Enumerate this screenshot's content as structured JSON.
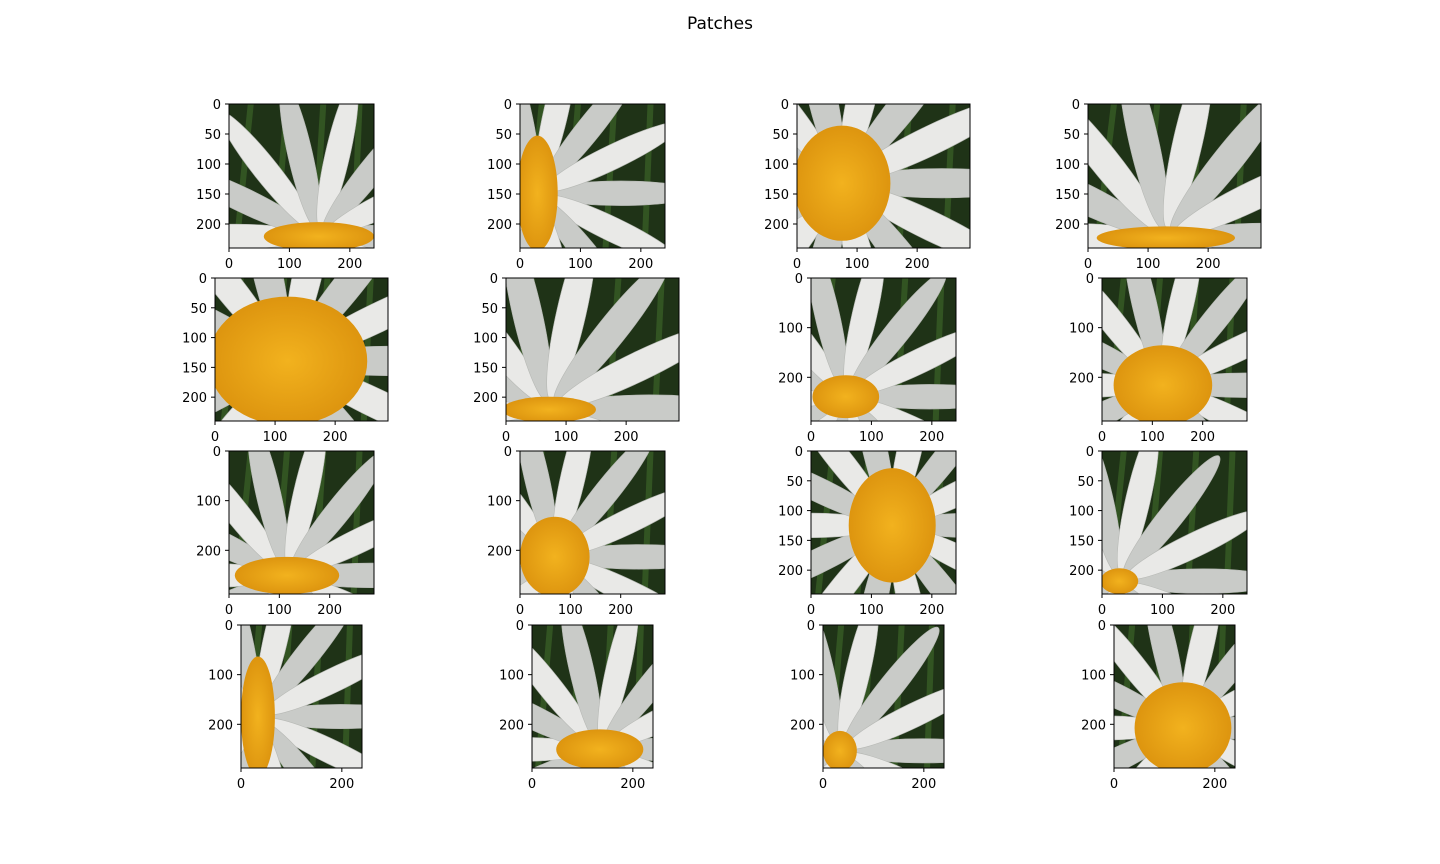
{
  "figure": {
    "title": "Patches"
  },
  "colors": {
    "background": "#1f3317",
    "leaf": "#3f6b2a",
    "petal": "#e9e9e7",
    "petal_shadow": "#c9cbc8",
    "center": "#f2b21e",
    "center_dark": "#d98f0c",
    "outline": "#000000"
  },
  "chart_data": [
    {
      "type": "image",
      "xticks": [
        0,
        100,
        200
      ],
      "yticks": [
        0,
        50,
        100,
        150,
        200
      ],
      "xlim": [
        0,
        240
      ],
      "ylim": [
        240,
        0
      ]
    },
    {
      "type": "image",
      "xticks": [
        0,
        100,
        200
      ],
      "yticks": [
        0,
        50,
        100,
        150,
        200
      ],
      "xlim": [
        0,
        240
      ],
      "ylim": [
        240,
        0
      ]
    },
    {
      "type": "image",
      "xticks": [
        0,
        100,
        200
      ],
      "yticks": [
        0,
        50,
        100,
        150,
        200
      ],
      "xlim": [
        0,
        288
      ],
      "ylim": [
        240,
        0
      ]
    },
    {
      "type": "image",
      "xticks": [
        0,
        100,
        200
      ],
      "yticks": [
        0,
        50,
        100,
        150,
        200
      ],
      "xlim": [
        0,
        288
      ],
      "ylim": [
        240,
        0
      ]
    },
    {
      "type": "image",
      "xticks": [
        0,
        100,
        200
      ],
      "yticks": [
        0,
        50,
        100,
        150,
        200
      ],
      "xlim": [
        0,
        288
      ],
      "ylim": [
        240,
        0
      ]
    },
    {
      "type": "image",
      "xticks": [
        0,
        100,
        200
      ],
      "yticks": [
        0,
        50,
        100,
        150,
        200
      ],
      "xlim": [
        0,
        288
      ],
      "ylim": [
        240,
        0
      ]
    },
    {
      "type": "image",
      "xticks": [
        0,
        100,
        200
      ],
      "yticks": [
        0,
        100,
        200
      ],
      "xlim": [
        0,
        240
      ],
      "ylim": [
        288,
        0
      ]
    },
    {
      "type": "image",
      "xticks": [
        0,
        100,
        200
      ],
      "yticks": [
        0,
        100,
        200
      ],
      "xlim": [
        0,
        288
      ],
      "ylim": [
        288,
        0
      ]
    },
    {
      "type": "image",
      "xticks": [
        0,
        100,
        200
      ],
      "yticks": [
        0,
        100,
        200
      ],
      "xlim": [
        0,
        288
      ],
      "ylim": [
        288,
        0
      ]
    },
    {
      "type": "image",
      "xticks": [
        0,
        100,
        200
      ],
      "yticks": [
        0,
        100,
        200
      ],
      "xlim": [
        0,
        288
      ],
      "ylim": [
        288,
        0
      ]
    },
    {
      "type": "image",
      "xticks": [
        0,
        100,
        200
      ],
      "yticks": [
        0,
        50,
        100,
        150,
        200
      ],
      "xlim": [
        0,
        240
      ],
      "ylim": [
        240,
        0
      ]
    },
    {
      "type": "image",
      "xticks": [
        0,
        100,
        200
      ],
      "yticks": [
        0,
        50,
        100,
        150,
        200
      ],
      "xlim": [
        0,
        240
      ],
      "ylim": [
        240,
        0
      ]
    },
    {
      "type": "image",
      "xticks": [
        0,
        200
      ],
      "yticks": [
        0,
        100,
        200
      ],
      "xlim": [
        0,
        240
      ],
      "ylim": [
        288,
        0
      ]
    },
    {
      "type": "image",
      "xticks": [
        0,
        200
      ],
      "yticks": [
        0,
        100,
        200
      ],
      "xlim": [
        0,
        240
      ],
      "ylim": [
        288,
        0
      ]
    },
    {
      "type": "image",
      "xticks": [
        0,
        200
      ],
      "yticks": [
        0,
        100,
        200
      ],
      "xlim": [
        0,
        240
      ],
      "ylim": [
        288,
        0
      ]
    },
    {
      "type": "image",
      "xticks": [
        0,
        200
      ],
      "yticks": [
        0,
        100,
        200
      ],
      "xlim": [
        0,
        240
      ],
      "ylim": [
        288,
        0
      ]
    }
  ]
}
